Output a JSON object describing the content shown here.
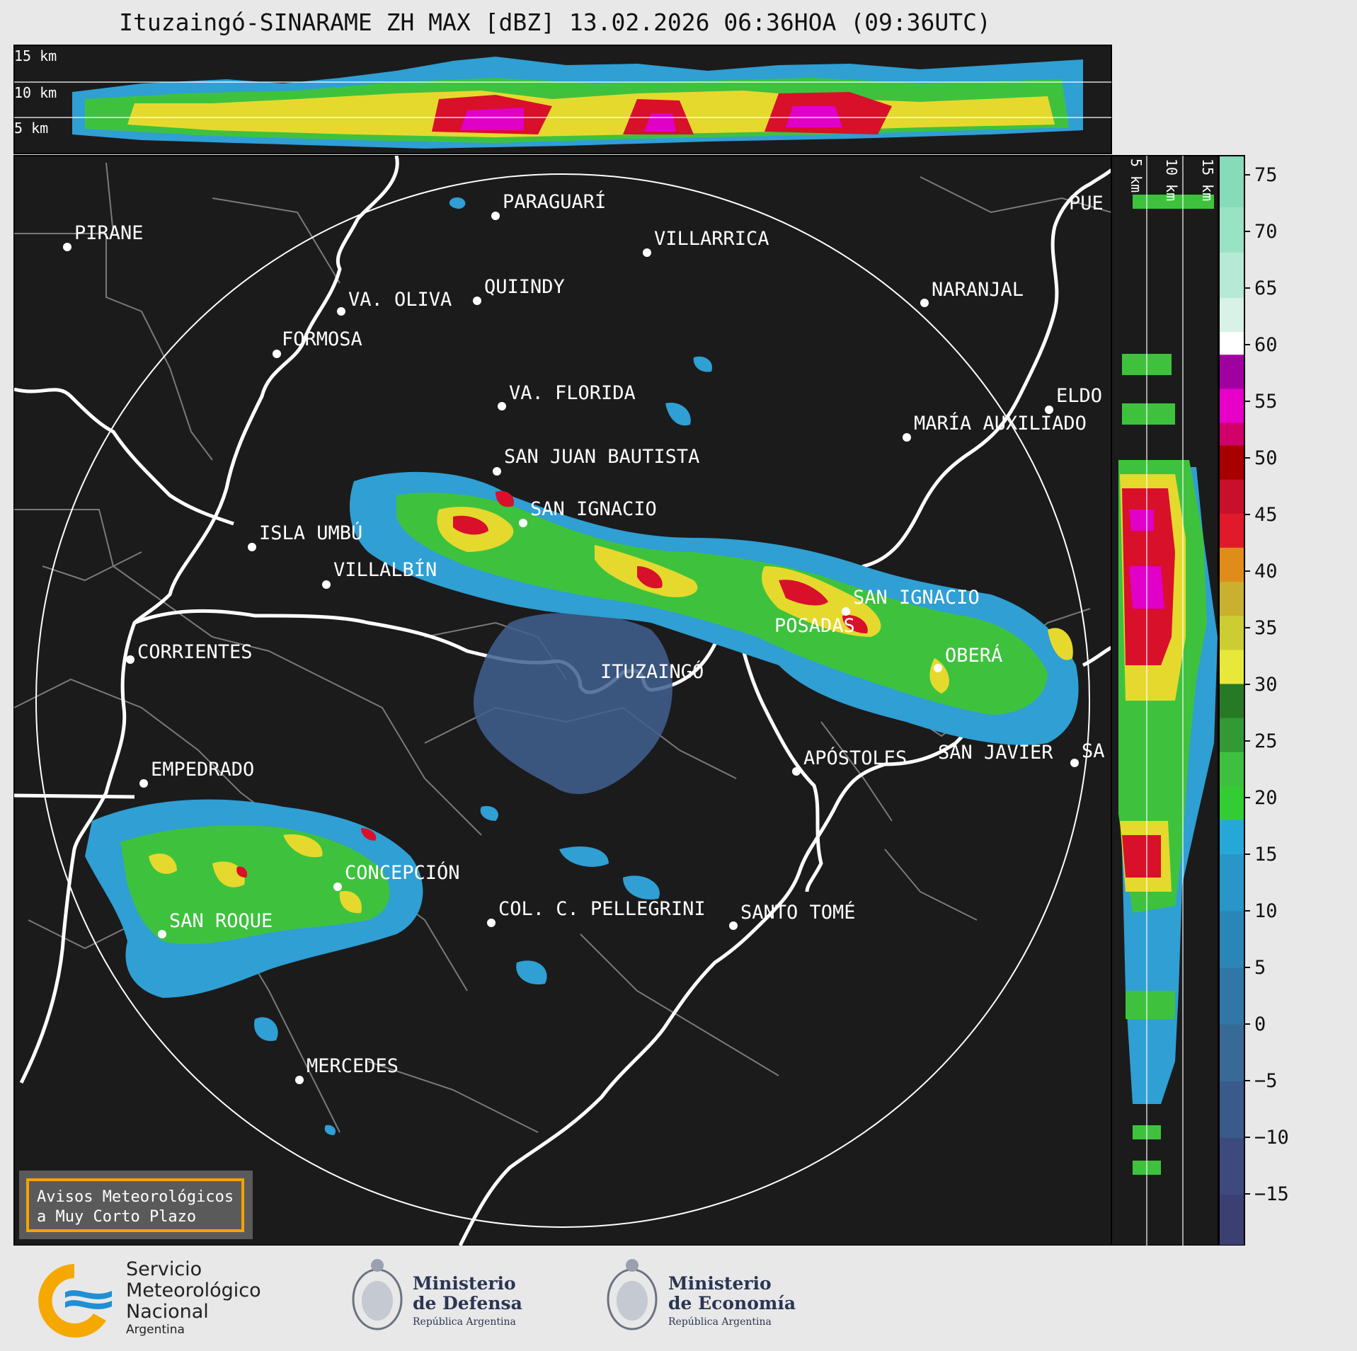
{
  "title": "Ituzaingó-SINARAME ZH MAX [dBZ] 13.02.2026 06:36HOA (09:36UTC)",
  "top_panel": {
    "height_labels": [
      "15 km",
      "10 km",
      "5 km"
    ]
  },
  "side_panel": {
    "height_labels": [
      "5 km",
      "10 km",
      "15 km"
    ]
  },
  "colorbar": {
    "ticks": [
      "75",
      "70",
      "65",
      "60",
      "55",
      "50",
      "45",
      "40",
      "35",
      "30",
      "25",
      "20",
      "15",
      "10",
      "5",
      "0",
      "−5",
      "−10",
      "−15"
    ]
  },
  "cities": [
    {
      "name": "PIRANE"
    },
    {
      "name": "PARAGUARÍ"
    },
    {
      "name": "VILLARRICA"
    },
    {
      "name": "VA. OLIVA"
    },
    {
      "name": "QUIINDY"
    },
    {
      "name": "NARANJAL"
    },
    {
      "name": "FORMOSA"
    },
    {
      "name": "PUE"
    },
    {
      "name": "VA. FLORIDA"
    },
    {
      "name": "ELDO"
    },
    {
      "name": "MARÍA AUXILIADO"
    },
    {
      "name": "SAN JUAN BAUTISTA"
    },
    {
      "name": "SAN IGNACIO"
    },
    {
      "name": "ISLA UMBÚ"
    },
    {
      "name": "VILLALBÍN"
    },
    {
      "name": "SAN IGNACIO"
    },
    {
      "name": "POSADAS"
    },
    {
      "name": "CORRIENTES"
    },
    {
      "name": "ITUZAINGÓ"
    },
    {
      "name": "OBERÁ"
    },
    {
      "name": "APÓSTOLES"
    },
    {
      "name": "SAN JAVIER"
    },
    {
      "name": "SA"
    },
    {
      "name": "EMPEDRADO"
    },
    {
      "name": "CONCEPCIÓN"
    },
    {
      "name": "COL. C. PELLEGRINI"
    },
    {
      "name": "SANTO TOMÉ"
    },
    {
      "name": "SAN ROQUE"
    },
    {
      "name": "MERCEDES"
    }
  ],
  "warning_box": {
    "line1": "Avisos Meteorológicos",
    "line2": "a Muy Corto Plazo"
  },
  "logos": {
    "smn": {
      "line1": "Servicio",
      "line2": "Meteorológico",
      "line3": "Nacional",
      "line4": "Argentina"
    },
    "defensa": {
      "line1": "Ministerio",
      "line2": "de Defensa",
      "line3": "República Argentina"
    },
    "economia": {
      "line1": "Ministerio",
      "line2": "de Economía",
      "line3": "República Argentina"
    }
  },
  "colors": {
    "background": "#1b1b1b",
    "accent_orange": "#f5a200",
    "smn_blue": "#1f8fd6"
  }
}
